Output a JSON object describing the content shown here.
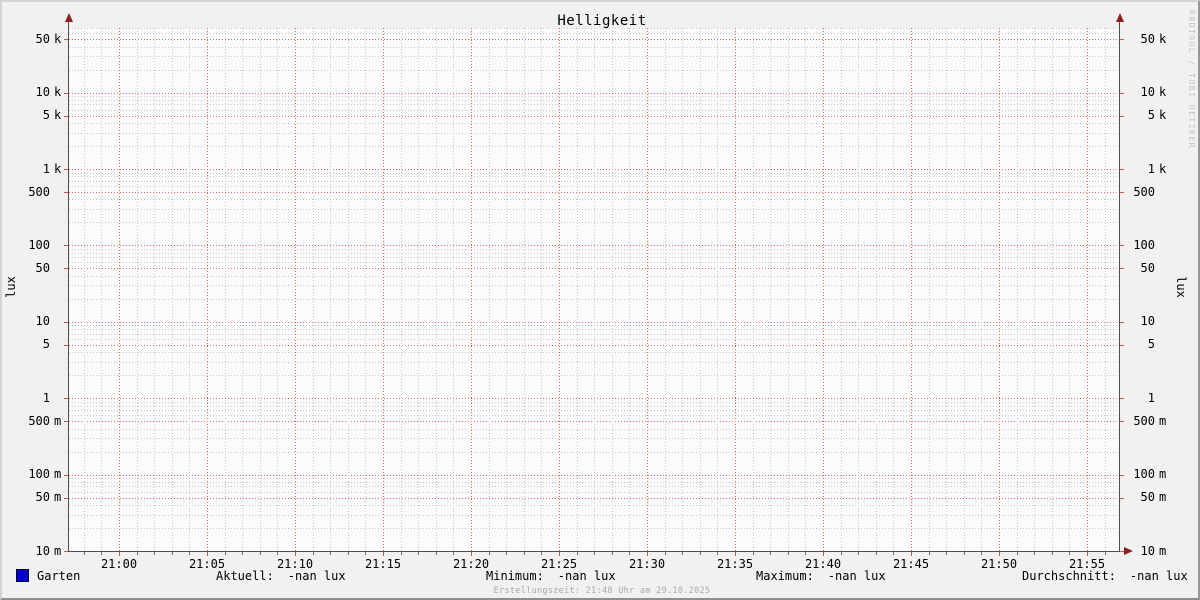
{
  "title": "Helligkeit",
  "watermark": "RRDTOOL / TOBI OETIKER",
  "y_axis": {
    "unit": "lux"
  },
  "legend": {
    "series_label": "Garten",
    "series_color": "#0000cc",
    "stats": [
      {
        "label": "Aktuell:",
        "value": "-nan lux"
      },
      {
        "label": "Minimum:",
        "value": "-nan lux"
      },
      {
        "label": "Maximum:",
        "value": "-nan lux"
      },
      {
        "label": "Durchschnitt:",
        "value": "-nan lux"
      }
    ]
  },
  "footer": "Erstellungszeit: 21:48 Uhr am 29.10.2025",
  "chart_data": {
    "type": "line",
    "title": "Helligkeit",
    "grid": true,
    "x": {
      "labels": [
        "21:00",
        "21:05",
        "21:10",
        "21:15",
        "21:20",
        "21:25",
        "21:30",
        "21:35",
        "21:40",
        "21:45",
        "21:50",
        "21:55"
      ],
      "minor_step_minutes": 1,
      "major_step_minutes": 5,
      "minor_range_minutes": [
        -2,
        56
      ]
    },
    "y": {
      "scale": "log",
      "unit": "lux",
      "min": 0.01,
      "max": 70000,
      "ticks": [
        {
          "num": "50",
          "unit": "k",
          "value": 50000
        },
        {
          "num": "10",
          "unit": "k",
          "value": 10000
        },
        {
          "num": "5",
          "unit": "k",
          "value": 5000
        },
        {
          "num": "1",
          "unit": "k",
          "value": 1000
        },
        {
          "num": "500",
          "unit": "",
          "value": 500
        },
        {
          "num": "100",
          "unit": "",
          "value": 100
        },
        {
          "num": "50",
          "unit": "",
          "value": 50
        },
        {
          "num": "10",
          "unit": "",
          "value": 10
        },
        {
          "num": "5",
          "unit": "",
          "value": 5
        },
        {
          "num": "1",
          "unit": "",
          "value": 1
        },
        {
          "num": "500",
          "unit": "m",
          "value": 0.5
        },
        {
          "num": "100",
          "unit": "m",
          "value": 0.1
        },
        {
          "num": "50",
          "unit": "m",
          "value": 0.05
        },
        {
          "num": "10",
          "unit": "m",
          "value": 0.01
        }
      ]
    },
    "series": [
      {
        "name": "Garten",
        "color": "#0000cc",
        "points": []
      }
    ],
    "stats": {
      "aktuell": "-nan lux",
      "minimum": "-nan lux",
      "maximum": "-nan lux",
      "durchschnitt": "-nan lux"
    }
  }
}
